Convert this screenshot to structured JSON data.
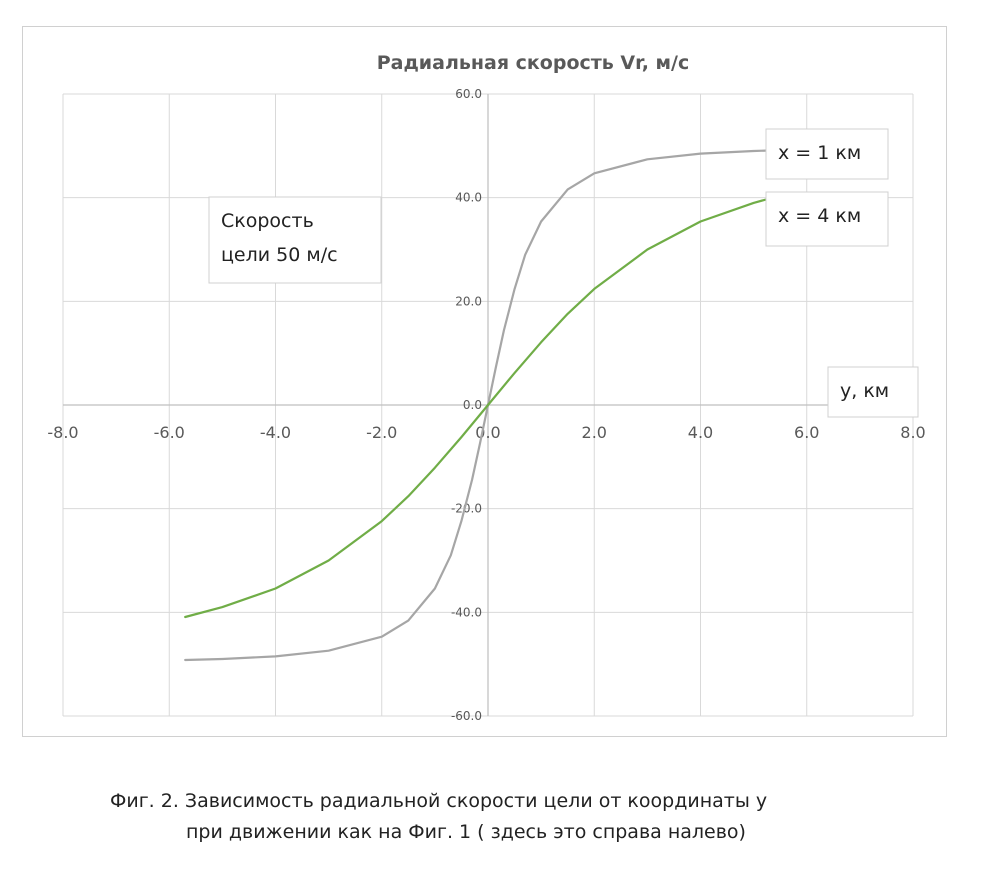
{
  "chart_data": {
    "type": "line",
    "title": "Радиальная скорость Vr, м/с",
    "xlim": [
      -8,
      8
    ],
    "ylim": [
      -60,
      60
    ],
    "x_ticks": [
      "-8.0",
      "-6.0",
      "-4.0",
      "-2.0",
      "0.0",
      "2.0",
      "4.0",
      "6.0",
      "8.0"
    ],
    "y_ticks": [
      "60.0",
      "40.0",
      "20.0",
      "0.0",
      "-20.0",
      "-40.0",
      "-60.0"
    ],
    "grid": true,
    "series": [
      {
        "name": "x = 1 км",
        "color": "#a6a6a6",
        "points": [
          [
            -5.7,
            -49.2
          ],
          [
            -5.0,
            -49.0
          ],
          [
            -4.0,
            -48.5
          ],
          [
            -3.0,
            -47.4
          ],
          [
            -2.0,
            -44.7
          ],
          [
            -1.5,
            -41.6
          ],
          [
            -1.0,
            -35.4
          ],
          [
            -0.7,
            -29.0
          ],
          [
            -0.5,
            -22.4
          ],
          [
            -0.3,
            -14.4
          ],
          [
            -0.15,
            -7.4
          ],
          [
            0.0,
            0.0
          ],
          [
            0.15,
            7.4
          ],
          [
            0.3,
            14.4
          ],
          [
            0.5,
            22.4
          ],
          [
            0.7,
            29.0
          ],
          [
            1.0,
            35.4
          ],
          [
            1.5,
            41.6
          ],
          [
            2.0,
            44.7
          ],
          [
            3.0,
            47.4
          ],
          [
            4.0,
            48.5
          ],
          [
            5.0,
            49.0
          ],
          [
            5.3,
            49.1
          ]
        ]
      },
      {
        "name": "x = 4 км",
        "color": "#70ad47",
        "points": [
          [
            -5.7,
            -40.9
          ],
          [
            -5.0,
            -39.0
          ],
          [
            -4.0,
            -35.4
          ],
          [
            -3.0,
            -30.0
          ],
          [
            -2.0,
            -22.4
          ],
          [
            -1.5,
            -17.6
          ],
          [
            -1.0,
            -12.1
          ],
          [
            -0.5,
            -6.2
          ],
          [
            0.0,
            0.0
          ],
          [
            0.5,
            6.2
          ],
          [
            1.0,
            12.1
          ],
          [
            1.5,
            17.6
          ],
          [
            2.0,
            22.4
          ],
          [
            3.0,
            30.0
          ],
          [
            4.0,
            35.4
          ],
          [
            5.0,
            39.0
          ],
          [
            5.5,
            40.4
          ]
        ]
      }
    ],
    "annotations": {
      "velocity_label_line1": "Скорость",
      "velocity_label_line2": "цели 50 м/с",
      "series1_label": "x = 1 км",
      "series2_label": "x = 4 км",
      "x_axis_label": "y, км"
    }
  },
  "caption": {
    "line1": "Фиг. 2. Зависимость радиальной скорости цели от координаты y",
    "line2": "при движении как на Фиг. 1    ( здесь это справа налево)"
  }
}
